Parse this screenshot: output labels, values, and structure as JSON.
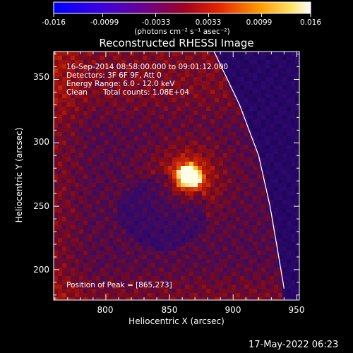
{
  "colorbar": {
    "ticks": [
      "-0.016",
      "-0.0099",
      "-0.0033",
      "0.0033",
      "0.0099",
      "0.016"
    ],
    "tick_values": [
      -0.016,
      -0.0099,
      -0.0033,
      0.0033,
      0.0099,
      0.016
    ],
    "unit_label": "(photons cm⁻² s⁻¹ asec⁻²)",
    "colors": [
      "#0000ff",
      "#6a00c8",
      "#8c0046",
      "#d81c00",
      "#ff8a00",
      "#ffe866",
      "#ffffff"
    ]
  },
  "chart_data": {
    "type": "heatmap",
    "title": "Reconstructed RHESSI Image",
    "xlabel": "Heliocentric X (arcsec)",
    "ylabel": "Heliocentric Y (arcsec)",
    "xlim": [
      759,
      952
    ],
    "ylim": [
      176,
      372
    ],
    "xticks": [
      "800",
      "850",
      "900",
      "950"
    ],
    "xtick_values": [
      800,
      850,
      900,
      950
    ],
    "yticks": [
      "200",
      "250",
      "300",
      "350"
    ],
    "ytick_values": [
      200,
      250,
      300,
      350
    ],
    "peak": [
      865,
      273
    ],
    "limb_curve": [
      [
        885,
        372
      ],
      [
        905,
        330
      ],
      [
        920,
        290
      ],
      [
        929,
        250
      ],
      [
        935,
        215
      ],
      [
        940,
        185
      ]
    ]
  },
  "annotations": {
    "time_range": "16-Sep-2014 08:58:00.000 to 09:01:12.000",
    "detectors": "Detectors: 3F 6F 9F, Att 0",
    "energy_range": "Energy Range: 6.0 - 12.0 keV",
    "method": "Clean",
    "total_counts": "Total counts: 1.08E+04",
    "peak_position": "Position of Peak = [865,273]"
  },
  "footer": {
    "timestamp": "17-May-2022 06:23"
  }
}
